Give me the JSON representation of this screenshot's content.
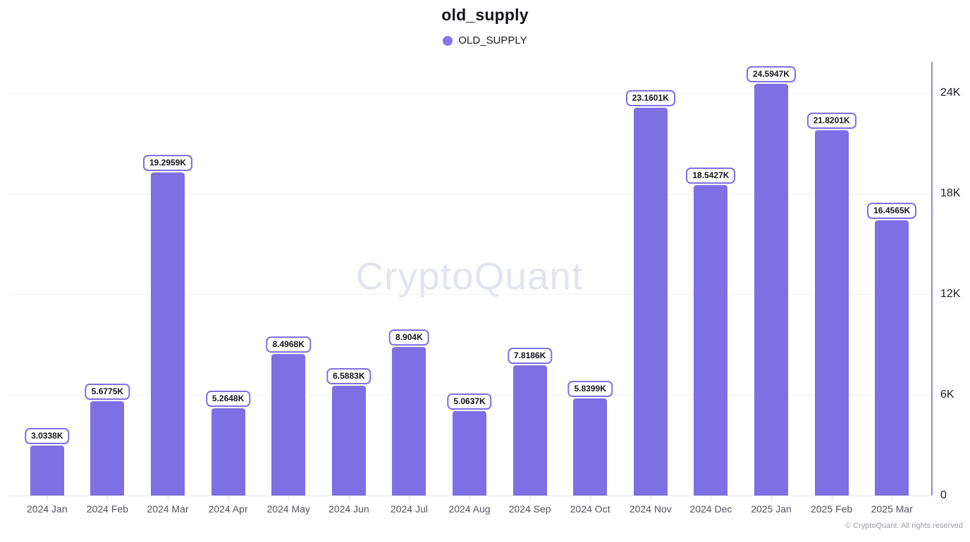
{
  "header": {
    "title": "old_supply"
  },
  "legend": {
    "label": "OLD_SUPPLY"
  },
  "watermark": "CryptoQuant",
  "footer": {
    "copyright": "© CryptoQuant. All rights reserved"
  },
  "colors": {
    "bar": "#7E70E4",
    "legend_dot": "#8478E6",
    "label_box_border": "#7E70E4",
    "y_axis_line": "#9186EC",
    "gridline": "#F2F2F6",
    "x_axis_line": "#E8E8EE",
    "watermark": "#E3E5EE"
  },
  "chart_data": {
    "type": "bar",
    "title": "old_supply",
    "xlabel": "",
    "ylabel": "",
    "unit": "K",
    "grid": "horizontal",
    "legend_position": "top",
    "y_axis_side": "right",
    "ylim": [
      0,
      25.9
    ],
    "categories": [
      "2024 Jan",
      "2024 Feb",
      "2024 Mar",
      "2024 Apr",
      "2024 May",
      "2024 Jun",
      "2024 Jul",
      "2024 Aug",
      "2024 Sep",
      "2024 Oct",
      "2024 Nov",
      "2024 Dec",
      "2025 Jan",
      "2025 Feb",
      "2025 Mar"
    ],
    "series": [
      {
        "name": "OLD_SUPPLY",
        "values": [
          3.0338,
          5.6775,
          19.2959,
          5.2648,
          8.4968,
          6.5883,
          8.904,
          5.0637,
          7.8186,
          5.8399,
          23.1601,
          18.5427,
          24.5947,
          21.8201,
          16.4565
        ],
        "value_labels": [
          "3.0338K",
          "5.6775K",
          "19.2959K",
          "5.2648K",
          "8.4968K",
          "6.5883K",
          "8.904K",
          "5.0637K",
          "7.8186K",
          "5.8399K",
          "23.1601K",
          "18.5427K",
          "24.5947K",
          "21.8201K",
          "16.4565K"
        ]
      }
    ],
    "yticks": [
      {
        "value": 0,
        "label": "0"
      },
      {
        "value": 6,
        "label": "6K"
      },
      {
        "value": 12,
        "label": "12K"
      },
      {
        "value": 18,
        "label": "18K"
      },
      {
        "value": 24,
        "label": "24K"
      }
    ]
  }
}
